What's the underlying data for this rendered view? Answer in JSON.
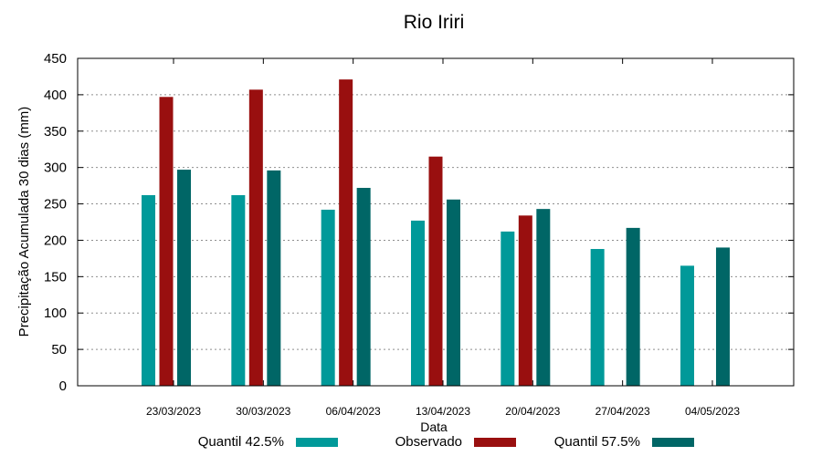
{
  "chart_data": {
    "type": "bar",
    "title": "Rio Iriri",
    "xlabel": "Data",
    "ylabel": "Precipitação Acumulada 30 dias (mm)",
    "ylim": [
      0,
      450
    ],
    "yticks": [
      0,
      50,
      100,
      150,
      200,
      250,
      300,
      350,
      400,
      450
    ],
    "grid": true,
    "legend_position": "bottom",
    "categories": [
      "23/03/2023",
      "30/03/2023",
      "06/04/2023",
      "13/04/2023",
      "20/04/2023",
      "27/04/2023",
      "04/05/2023"
    ],
    "series": [
      {
        "name": "Quantil 42.5%",
        "color": "#009999",
        "values": [
          262,
          262,
          242,
          227,
          212,
          188,
          165
        ]
      },
      {
        "name": "Observado",
        "color": "#990f0f",
        "values": [
          397,
          407,
          421,
          315,
          234,
          null,
          null
        ]
      },
      {
        "name": "Quantil 57.5%",
        "color": "#006666",
        "values": [
          297,
          296,
          272,
          256,
          243,
          217,
          190
        ]
      }
    ]
  }
}
